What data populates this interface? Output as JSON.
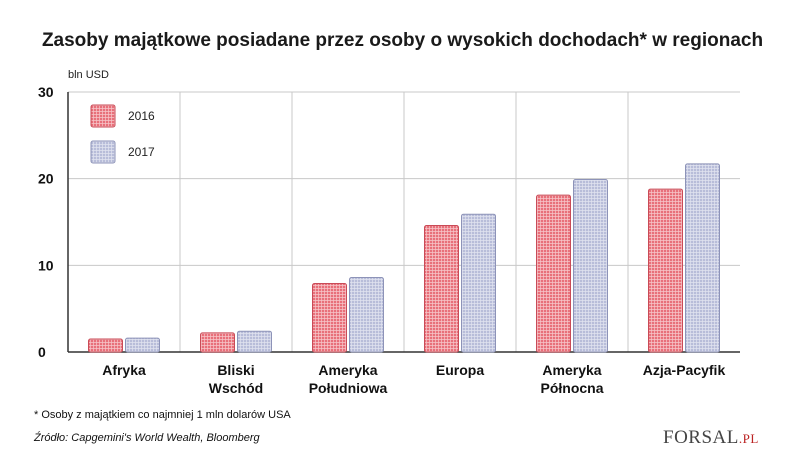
{
  "chart_data": {
    "type": "bar",
    "title": "Zasoby majątkowe posiadane przez osoby o wysokich dochodach* w regionach",
    "ylabel": "bln USD",
    "xlabel": "",
    "categories": [
      "Afryka",
      "Bliski\nWschód",
      "Ameryka\nPołudniowa",
      "Europa",
      "Ameryka\nPółnocna",
      "Azja-Pacyfik"
    ],
    "series": [
      {
        "name": "2016",
        "values": [
          1.5,
          2.2,
          7.9,
          14.6,
          18.1,
          18.8
        ]
      },
      {
        "name": "2017",
        "values": [
          1.6,
          2.4,
          8.6,
          15.9,
          19.9,
          21.7
        ]
      }
    ],
    "ylim": [
      0,
      30
    ],
    "yticks": [
      0,
      10,
      20,
      30
    ],
    "grid": true,
    "legend": "top-left",
    "colors": {
      "2016": "#e8707a",
      "2017": "#b8bdd9"
    }
  },
  "footnote": "* Osoby z majątkiem co najmniej 1 mln dolarów USA",
  "source": "Źródło: Capgemini's World Wealth, Bloomberg",
  "logo": {
    "main": "FORSAL",
    "suffix": ".PL"
  }
}
